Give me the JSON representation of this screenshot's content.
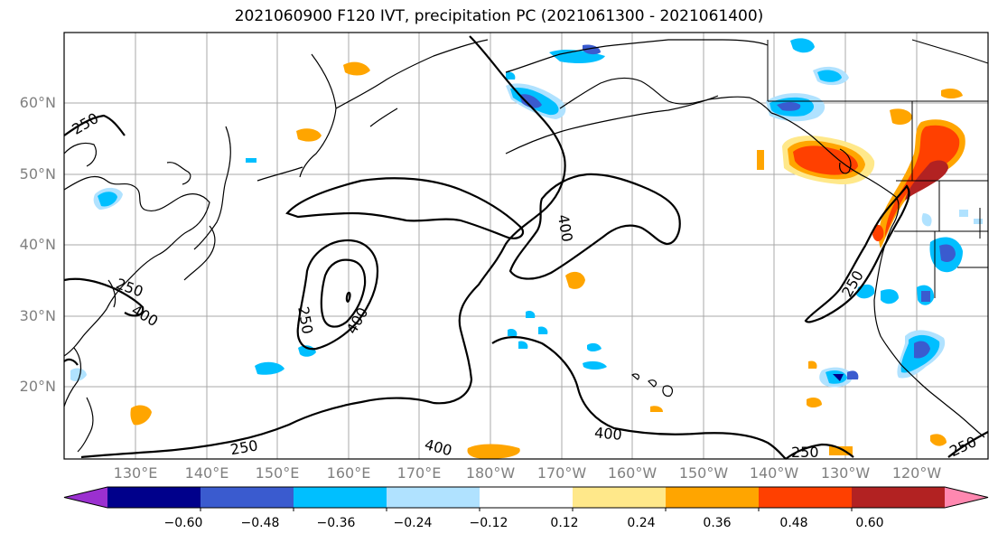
{
  "title": "2021060900 F120 IVT, precipitation PC (2021061300 - 2021061400)",
  "lat_labels": [
    "60°N",
    "50°N",
    "40°N",
    "30°N",
    "20°N"
  ],
  "lon_labels": [
    "130°E",
    "140°E",
    "150°E",
    "160°E",
    "170°E",
    "180°W",
    "170°W",
    "160°W",
    "150°W",
    "140°W",
    "130°W",
    "120°W"
  ],
  "contour_labels": {
    "l250_a": "250",
    "l250_b": "250",
    "l250_c": "250",
    "l250_d": "250",
    "l250_e": "250",
    "l250_f": "250",
    "l250_g": "250",
    "l400_a": "400",
    "l400_b": "400",
    "l400_c": "400",
    "l400_d": "400",
    "l400_e": "400"
  },
  "colorbar": {
    "ticks": [
      "−0.60",
      "−0.48",
      "−0.36",
      "−0.24",
      "−0.12",
      "0.12",
      "0.24",
      "0.36",
      "0.48",
      "0.60"
    ],
    "colors": [
      "#9b30d0",
      "#00008b",
      "#3a5bcf",
      "#00bfff",
      "#b0e2ff",
      "#ffffff",
      "#ffe88a",
      "#ffa500",
      "#ff4000",
      "#b22222",
      "#ff88b0"
    ]
  }
}
